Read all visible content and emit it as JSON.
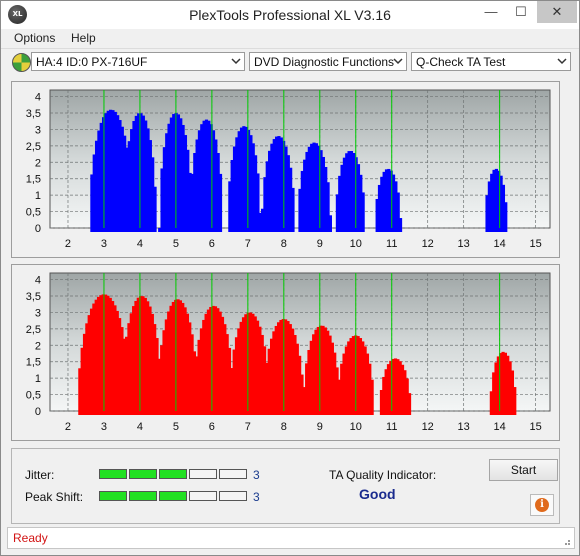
{
  "window": {
    "title": "PlexTools Professional XL V3.16",
    "icon_text": "XL"
  },
  "menu": {
    "items": [
      "Options",
      "Help"
    ]
  },
  "toolbar": {
    "drive": "HA:4 ID:0  PX-716UF",
    "function": "DVD Diagnostic Functions",
    "test": "Q-Check TA Test"
  },
  "colors": {
    "top_chart": "#0000ff",
    "bottom_chart": "#ff0000",
    "grid_marker": "#00cc00",
    "plot_bg": "#c8cdcd"
  },
  "chart_data": [
    {
      "type": "area",
      "x_ticks": [
        "2",
        "3",
        "4",
        "5",
        "6",
        "7",
        "8",
        "9",
        "10",
        "11",
        "12",
        "13",
        "14",
        "15"
      ],
      "y_ticks": [
        "4",
        "3,5",
        "3",
        "2,5",
        "2",
        "1,5",
        "1",
        "0,5",
        "0"
      ],
      "xlim": [
        1.5,
        15.4
      ],
      "ylim": [
        0,
        4.2
      ],
      "green_markers": [
        3,
        4,
        5,
        6,
        7,
        8,
        9,
        10,
        11,
        14
      ],
      "bumps": [
        {
          "center": 3.2,
          "halfwidth": 0.6,
          "peak": 3.6
        },
        {
          "center": 4.0,
          "halfwidth": 0.45,
          "peak": 3.5
        },
        {
          "center": 5.0,
          "halfwidth": 0.45,
          "peak": 3.5
        },
        {
          "center": 5.85,
          "halfwidth": 0.45,
          "peak": 3.3
        },
        {
          "center": 6.9,
          "halfwidth": 0.45,
          "peak": 3.1
        },
        {
          "center": 7.85,
          "halfwidth": 0.45,
          "peak": 2.8
        },
        {
          "center": 8.85,
          "halfwidth": 0.45,
          "peak": 2.6
        },
        {
          "center": 9.85,
          "halfwidth": 0.4,
          "peak": 2.35
        },
        {
          "center": 10.9,
          "halfwidth": 0.35,
          "peak": 1.8
        },
        {
          "center": 13.9,
          "halfwidth": 0.3,
          "peak": 1.8
        }
      ],
      "start": 2.6,
      "end": 11.25
    },
    {
      "type": "area",
      "x_ticks": [
        "2",
        "3",
        "4",
        "5",
        "6",
        "7",
        "8",
        "9",
        "10",
        "11",
        "12",
        "13",
        "14",
        "15"
      ],
      "y_ticks": [
        "4",
        "3,5",
        "3",
        "2,5",
        "2",
        "1,5",
        "1",
        "0,5",
        "0"
      ],
      "xlim": [
        1.5,
        15.4
      ],
      "ylim": [
        0,
        4.2
      ],
      "green_markers": [
        3,
        4,
        5,
        6,
        7,
        8,
        9,
        10,
        11,
        14
      ],
      "bumps": [
        {
          "center": 3.0,
          "halfwidth": 0.72,
          "peak": 3.55
        },
        {
          "center": 4.05,
          "halfwidth": 0.55,
          "peak": 3.5
        },
        {
          "center": 5.05,
          "halfwidth": 0.55,
          "peak": 3.4
        },
        {
          "center": 6.05,
          "halfwidth": 0.55,
          "peak": 3.2
        },
        {
          "center": 7.05,
          "halfwidth": 0.55,
          "peak": 3.0
        },
        {
          "center": 8.0,
          "halfwidth": 0.55,
          "peak": 2.8
        },
        {
          "center": 9.05,
          "halfwidth": 0.5,
          "peak": 2.6
        },
        {
          "center": 10.0,
          "halfwidth": 0.5,
          "peak": 2.3
        },
        {
          "center": 11.1,
          "halfwidth": 0.42,
          "peak": 1.6
        },
        {
          "center": 14.1,
          "halfwidth": 0.35,
          "peak": 1.8
        }
      ],
      "start": 2.2,
      "end": 11.5
    }
  ],
  "meters": {
    "jitter": {
      "label": "Jitter:",
      "value": "3",
      "segments_total": 5,
      "segments_on": 3
    },
    "peak_shift": {
      "label": "Peak Shift:",
      "value": "3",
      "segments_total": 5,
      "segments_on": 3
    }
  },
  "quality": {
    "label": "TA Quality Indicator:",
    "value": "Good"
  },
  "buttons": {
    "start": "Start",
    "info_icon": "info-icon"
  },
  "status": {
    "text": "Ready"
  }
}
